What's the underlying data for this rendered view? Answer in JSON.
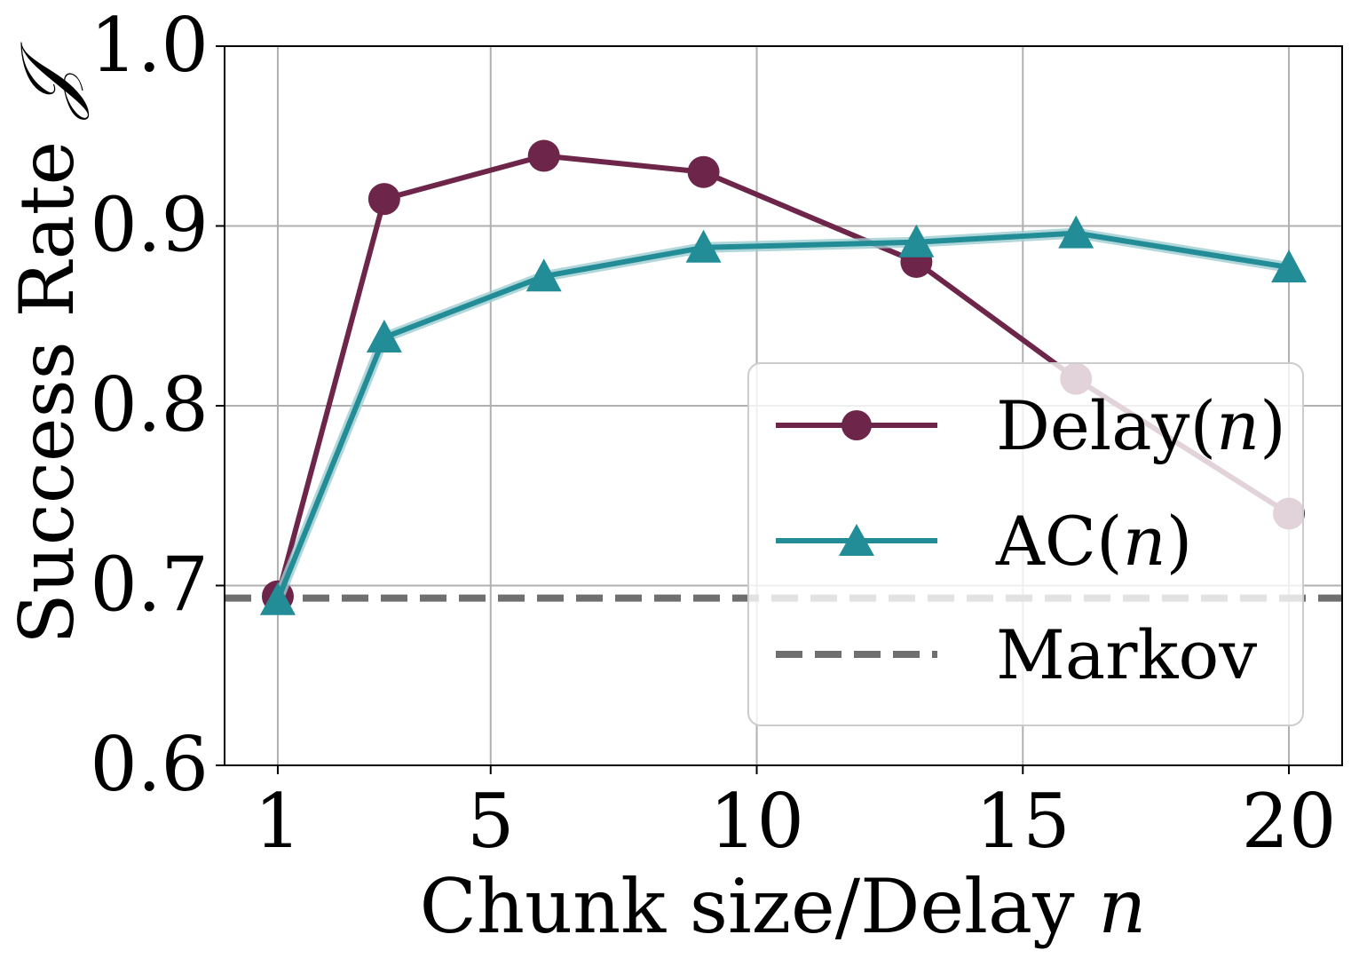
{
  "chart_data": {
    "type": "line",
    "xlabel": "Chunk size/Delay n",
    "xlabel_plain": "Chunk size/Delay ",
    "xlabel_var": "n",
    "ylabel": "Success Rate 𝒥",
    "ylabel_plain": "Success Rate ",
    "ylabel_var": "𝒥",
    "xlim": [
      0,
      21
    ],
    "ylim": [
      0.6,
      1.0
    ],
    "xticks": [
      1,
      5,
      10,
      15,
      20
    ],
    "yticks": [
      0.6,
      0.7,
      0.8,
      0.9,
      1.0
    ],
    "xtick_labels": [
      "1",
      "5",
      "10",
      "15",
      "20"
    ],
    "ytick_labels": [
      "0.6",
      "0.7",
      "0.8",
      "0.9",
      "1.0"
    ],
    "grid": true,
    "legend_position": "lower-right",
    "series": [
      {
        "name": "Delay(n)",
        "marker": "circle",
        "color": "#6d2649",
        "x": [
          1,
          3,
          6,
          9,
          13,
          16,
          20
        ],
        "y": [
          0.694,
          0.915,
          0.939,
          0.93,
          0.88,
          0.815,
          0.74
        ]
      },
      {
        "name": "AC(n)",
        "marker": "triangle",
        "color": "#238d97",
        "band_color": "#9fcdd2",
        "x": [
          1,
          3,
          6,
          9,
          13,
          16,
          20
        ],
        "y": [
          0.692,
          0.838,
          0.872,
          0.888,
          0.891,
          0.896,
          0.877
        ]
      }
    ],
    "reference_lines": [
      {
        "name": "Markov",
        "style": "dashed",
        "color": "#6f6f6f",
        "y": 0.693
      }
    ]
  },
  "legend": {
    "items": [
      {
        "label_plain": "Delay(",
        "label_var": "n",
        "label_end": ")"
      },
      {
        "label_plain": "AC(",
        "label_var": "n",
        "label_end": ")"
      },
      {
        "label_plain": "Markov"
      }
    ]
  }
}
